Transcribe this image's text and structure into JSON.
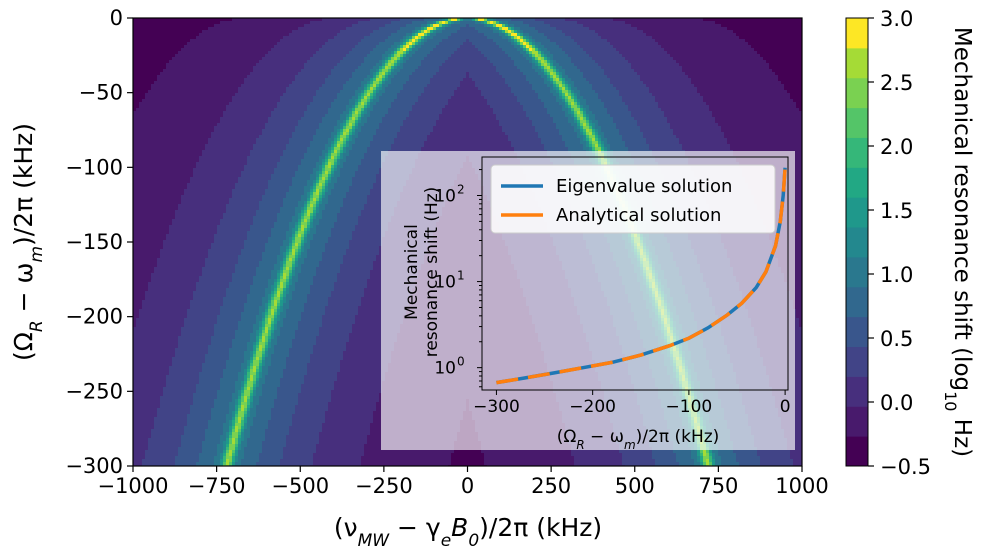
{
  "chart_data": {
    "type": "heatmap",
    "main": {
      "xlabel_parts": [
        "(ν",
        "MW",
        " − γ",
        "e",
        "B",
        "0",
        ")/2π (kHz)"
      ],
      "ylabel_parts": [
        "(Ω",
        "R",
        " − ω",
        "m",
        ")/2π (kHz)"
      ],
      "xlim": [
        -1000,
        1000
      ],
      "ylim": [
        -300,
        0
      ],
      "xticks": [
        -1000,
        -750,
        -500,
        -250,
        0,
        250,
        500,
        750,
        1000
      ],
      "xtick_labels": [
        "−1000",
        "−750",
        "−500",
        "−250",
        "0",
        "250",
        "500",
        "750",
        "1000"
      ],
      "yticks": [
        0,
        -50,
        -100,
        -150,
        -200,
        -250,
        -300
      ],
      "ytick_labels": [
        "0",
        "−50",
        "−100",
        "−150",
        "−200",
        "−250",
        "−300"
      ],
      "resonance_curve": {
        "x_at_y0": 0,
        "x_at_y_min300": 720,
        "shape": "parabola"
      },
      "colorbar": {
        "label_parts": [
          "Mechanical resonance shift (log",
          "10",
          " Hz)"
        ],
        "levels": [
          -0.5,
          -0.25,
          0.0,
          0.25,
          0.5,
          0.75,
          1.0,
          1.25,
          1.5,
          1.75,
          2.0,
          2.25,
          2.5,
          2.75,
          3.0
        ],
        "ticks": [
          3.0,
          2.5,
          2.0,
          1.5,
          1.0,
          0.5,
          0.0,
          -0.5
        ],
        "tick_labels": [
          "3.0",
          "2.5",
          "2.0",
          "1.5",
          "1.0",
          "0.5",
          "0.0",
          "−0.5"
        ],
        "colors": [
          "#440154",
          "#481a6c",
          "#472f7d",
          "#414487",
          "#39568c",
          "#31688e",
          "#2a788e",
          "#23888e",
          "#1f988b",
          "#22a884",
          "#35b779",
          "#54c568",
          "#7ad151",
          "#a5db36",
          "#fde725"
        ]
      }
    },
    "inset": {
      "type": "line",
      "yscale": "log",
      "xlabel_parts": [
        "(Ω",
        "R",
        " − ω",
        "m",
        ")/2π (kHz)"
      ],
      "ylabel_lines": [
        "Mechanical",
        "resonance shift (Hz)"
      ],
      "xlim": [
        -315,
        3
      ],
      "ylim": [
        0.55,
        280
      ],
      "xticks": [
        -300,
        -200,
        -100,
        0
      ],
      "xtick_labels": [
        "−300",
        "−200",
        "−100",
        "0"
      ],
      "yticks": [
        1,
        10,
        100
      ],
      "ytick_labels": [
        "10",
        "10",
        "10"
      ],
      "ytick_exponents": [
        "0",
        "1",
        "2"
      ],
      "x": [
        -300,
        -270,
        -240,
        -210,
        -180,
        -150,
        -120,
        -100,
        -80,
        -60,
        -45,
        -30,
        -20,
        -10,
        -5,
        -2,
        0
      ],
      "series": [
        {
          "name": "Eigenvalue solution",
          "color": "#1f77b4",
          "values": [
            0.67,
            0.76,
            0.87,
            1.0,
            1.15,
            1.4,
            1.8,
            2.2,
            2.9,
            4.1,
            5.6,
            8.5,
            13,
            26,
            50,
            100,
            210
          ]
        },
        {
          "name": "Analytical solution",
          "color": "#ff7f0e",
          "values": [
            0.67,
            0.76,
            0.87,
            1.0,
            1.15,
            1.4,
            1.8,
            2.2,
            2.9,
            4.1,
            5.6,
            8.5,
            13,
            26,
            50,
            100,
            210
          ]
        }
      ]
    }
  }
}
